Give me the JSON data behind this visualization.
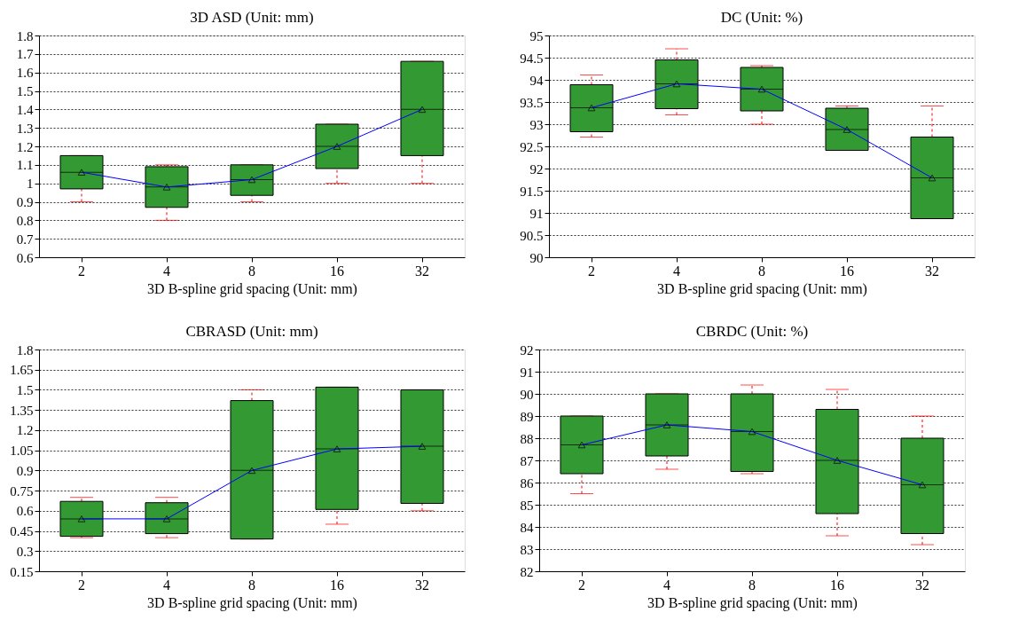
{
  "chart_data": [
    {
      "type": "box",
      "title": "3D ASD (Unit: mm)",
      "xlabel": "3D B-spline grid spacing (Unit: mm)",
      "categories": [
        "2",
        "4",
        "8",
        "16",
        "32"
      ],
      "ylim": [
        0.6,
        1.8
      ],
      "yticks": [
        0.6,
        0.7,
        0.8,
        0.9,
        1,
        1.1,
        1.2,
        1.3,
        1.4,
        1.5,
        1.6,
        1.7,
        1.8
      ],
      "grid": "y",
      "legend": false,
      "series": [
        {
          "type": "box",
          "color": "#339933",
          "boxes": [
            {
              "low": 0.9,
              "q1": 0.97,
              "median": 1.06,
              "q3": 1.15,
              "high": 1.15
            },
            {
              "low": 0.8,
              "q1": 0.87,
              "median": 0.98,
              "q3": 1.09,
              "high": 1.1
            },
            {
              "low": 0.9,
              "q1": 0.935,
              "median": 1.02,
              "q3": 1.1,
              "high": 1.1
            },
            {
              "low": 1.0,
              "q1": 1.08,
              "median": 1.2,
              "q3": 1.32,
              "high": 1.32
            },
            {
              "low": 1.0,
              "q1": 1.15,
              "median": 1.4,
              "q3": 1.66,
              "high": 1.66
            }
          ]
        },
        {
          "type": "line",
          "color": "#0000ff",
          "marker": "triangle",
          "values": [
            1.06,
            0.98,
            1.02,
            1.2,
            1.4
          ]
        }
      ]
    },
    {
      "type": "box",
      "title": "DC (Unit: %)",
      "xlabel": "3D B-spline grid spacing (Unit: mm)",
      "categories": [
        "2",
        "4",
        "8",
        "16",
        "32"
      ],
      "ylim": [
        90,
        95
      ],
      "yticks": [
        90,
        90.5,
        91,
        91.5,
        92,
        92.5,
        93,
        93.5,
        94,
        94.5,
        95
      ],
      "grid": "y",
      "legend": false,
      "series": [
        {
          "type": "box",
          "color": "#339933",
          "boxes": [
            {
              "low": 92.71,
              "q1": 92.83,
              "median": 93.37,
              "q3": 93.89,
              "high": 94.11
            },
            {
              "low": 93.21,
              "q1": 93.35,
              "median": 93.91,
              "q3": 94.45,
              "high": 94.7
            },
            {
              "low": 93.0,
              "q1": 93.3,
              "median": 93.79,
              "q3": 94.28,
              "high": 94.32
            },
            {
              "low": 92.41,
              "q1": 92.41,
              "median": 92.88,
              "q3": 93.36,
              "high": 93.41
            },
            {
              "low": 90.87,
              "q1": 90.87,
              "median": 91.79,
              "q3": 92.71,
              "high": 93.41
            }
          ]
        },
        {
          "type": "line",
          "color": "#0000ff",
          "marker": "triangle",
          "values": [
            93.37,
            93.91,
            93.79,
            92.88,
            91.79
          ]
        }
      ]
    },
    {
      "type": "box",
      "title": "CBRASD (Unit: mm)",
      "xlabel": "3D B-spline grid spacing (Unit: mm)",
      "categories": [
        "2",
        "4",
        "8",
        "16",
        "32"
      ],
      "ylim": [
        0.15,
        1.8
      ],
      "yticks": [
        0.15,
        0.3,
        0.45,
        0.6,
        0.75,
        0.9,
        1.05,
        1.2,
        1.35,
        1.5,
        1.65,
        1.8
      ],
      "grid": "y",
      "legend": false,
      "series": [
        {
          "type": "box",
          "color": "#339933",
          "boxes": [
            {
              "low": 0.4,
              "q1": 0.41,
              "median": 0.54,
              "q3": 0.67,
              "high": 0.7
            },
            {
              "low": 0.4,
              "q1": 0.43,
              "median": 0.54,
              "q3": 0.66,
              "high": 0.7
            },
            {
              "low": 0.39,
              "q1": 0.39,
              "median": 0.9,
              "q3": 1.42,
              "high": 1.5
            },
            {
              "low": 0.5,
              "q1": 0.61,
              "median": 1.06,
              "q3": 1.52,
              "high": 1.52
            },
            {
              "low": 0.6,
              "q1": 0.655,
              "median": 1.08,
              "q3": 1.5,
              "high": 1.5
            }
          ]
        },
        {
          "type": "line",
          "color": "#0000ff",
          "marker": "triangle",
          "values": [
            0.54,
            0.54,
            0.9,
            1.06,
            1.08
          ]
        }
      ]
    },
    {
      "type": "box",
      "title": "CBRDC (Unit: %)",
      "xlabel": "3D B-spline grid spacing (Unit: mm)",
      "categories": [
        "2",
        "4",
        "8",
        "16",
        "32"
      ],
      "ylim": [
        82,
        92
      ],
      "yticks": [
        82,
        83,
        84,
        85,
        86,
        87,
        88,
        89,
        90,
        91,
        92
      ],
      "grid": "y",
      "legend": false,
      "series": [
        {
          "type": "box",
          "color": "#339933",
          "boxes": [
            {
              "low": 85.5,
              "q1": 86.4,
              "median": 87.7,
              "q3": 89.0,
              "high": 89.0
            },
            {
              "low": 86.6,
              "q1": 87.2,
              "median": 88.6,
              "q3": 90.0,
              "high": 90.0
            },
            {
              "low": 86.4,
              "q1": 86.5,
              "median": 88.3,
              "q3": 90.0,
              "high": 90.4
            },
            {
              "low": 83.6,
              "q1": 84.6,
              "median": 87.0,
              "q3": 89.3,
              "high": 90.2
            },
            {
              "low": 83.2,
              "q1": 83.7,
              "median": 85.9,
              "q3": 88.0,
              "high": 89.0
            }
          ]
        },
        {
          "type": "line",
          "color": "#0000ff",
          "marker": "triangle",
          "values": [
            87.7,
            88.6,
            88.3,
            87.0,
            85.9
          ]
        }
      ]
    }
  ]
}
